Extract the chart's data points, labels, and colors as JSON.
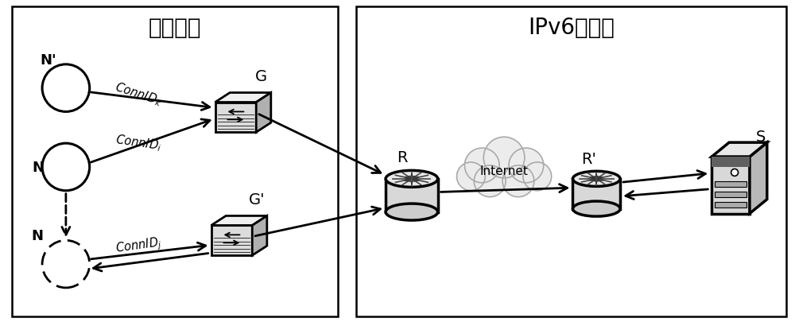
{
  "title_left": "物联子网",
  "title_right": "IPv6互联网",
  "label_N_prime": "N'",
  "label_N": "N",
  "label_N_bot": "N",
  "label_G": "G",
  "label_Gp": "G'",
  "label_R": "R",
  "label_Rp": "R'",
  "label_S": "S",
  "label_Internet": "Internet",
  "connid_k": "ConnID",
  "connid_k_sub": "k",
  "connid_i": "ConnID",
  "connid_i_sub": "i",
  "connid_j": "ConnID",
  "connid_j_sub": "j",
  "bg": "#ffffff",
  "black": "#000000",
  "gray_light": "#e8e8e8",
  "gray_mid": "#cccccc",
  "gray_dark": "#888888",
  "cloud_color": "#e0e0e0"
}
